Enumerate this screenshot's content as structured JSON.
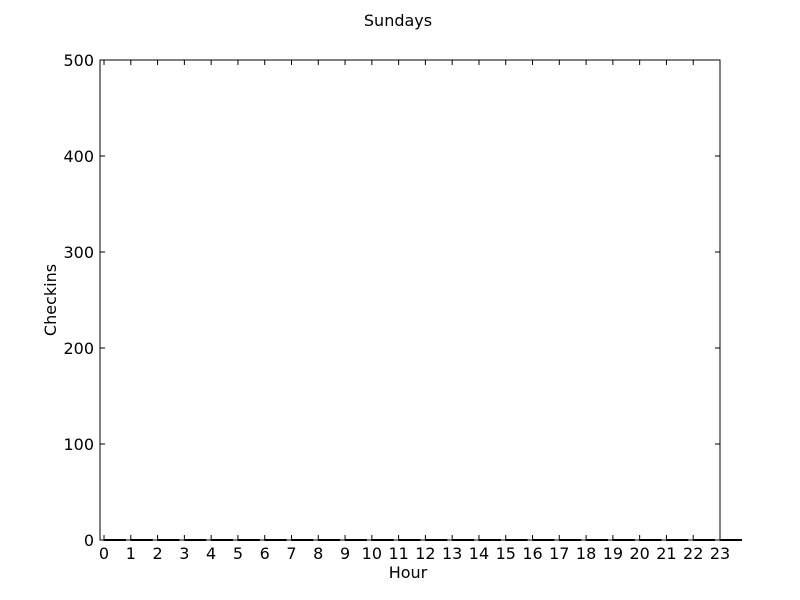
{
  "chart_data": {
    "type": "bar",
    "title": "Sundays",
    "xlabel": "Hour",
    "ylabel": "Checkins",
    "categories": [
      "0",
      "1",
      "2",
      "3",
      "4",
      "5",
      "6",
      "7",
      "8",
      "9",
      "10",
      "11",
      "12",
      "13",
      "14",
      "15",
      "16",
      "17",
      "18",
      "19",
      "20",
      "21",
      "22",
      "23"
    ],
    "values": [
      0,
      0,
      0,
      0,
      0,
      0,
      0,
      0,
      0,
      0,
      0,
      0,
      0,
      0,
      0,
      0,
      0,
      0,
      0,
      0,
      0,
      0,
      0,
      0
    ],
    "xlim": [
      -0.15,
      23
    ],
    "ylim": [
      0,
      500
    ],
    "yticks": [
      0,
      100,
      200,
      300,
      400,
      500
    ],
    "grid": false,
    "colors": {
      "bar": "#0000ff",
      "axis": "#000000"
    }
  }
}
